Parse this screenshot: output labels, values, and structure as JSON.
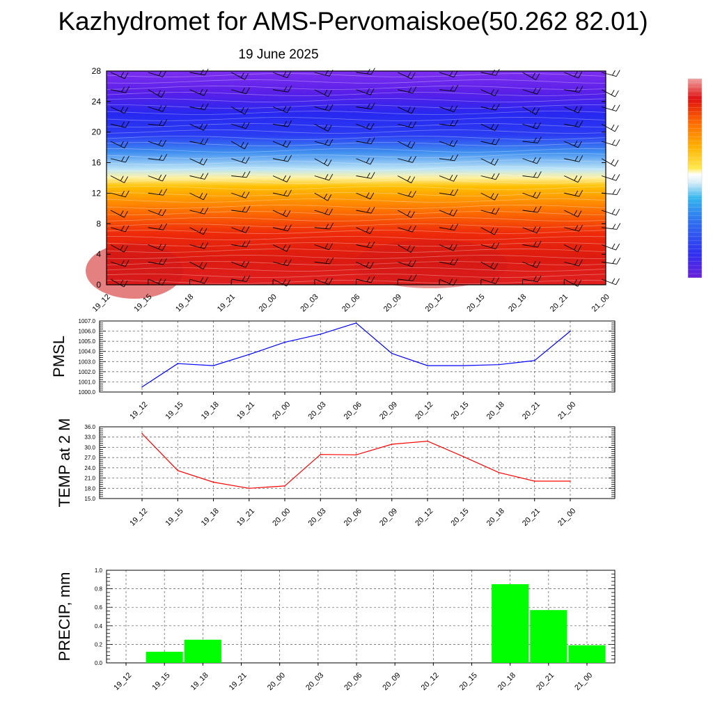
{
  "header": {
    "title": "Kazhydromet for AMS-Pervomaiskoe(50.262 82.01)",
    "subtitle": "19 June 2025"
  },
  "chart_data": [
    {
      "type": "heatmap",
      "title": "Kazhydromet for AMS-Pervomaiskoe(50.262 82.01)",
      "subtitle": "19 June 2025",
      "x": [
        "19_12",
        "19_15",
        "19_18",
        "19_21",
        "20_00",
        "20_03",
        "20_06",
        "20_09",
        "20_12",
        "20_15",
        "20_18",
        "20_21",
        "21_00"
      ],
      "y_ticks": [
        0,
        4,
        8,
        12,
        16,
        20,
        24,
        28
      ],
      "ylim": [
        0,
        28
      ],
      "colorbar_colors": [
        "#6a1fd8",
        "#3030f0",
        "#2f6ff0",
        "#35b5ee",
        "#ffffff",
        "#ffe84d",
        "#ffb000",
        "#ff6a00",
        "#e01010",
        "#c81d1d"
      ],
      "wind_barbs": true
    },
    {
      "type": "line",
      "ylabel": "PMSL",
      "categories": [
        "19_12",
        "19_15",
        "19_18",
        "19_21",
        "20_00",
        "20_03",
        "20_06",
        "20_09",
        "20_12",
        "20_15",
        "20_18",
        "20_21",
        "21_00"
      ],
      "values": [
        1000.5,
        1002.8,
        1002.6,
        1003.7,
        1004.9,
        1005.7,
        1006.8,
        1003.8,
        1002.6,
        1002.6,
        1002.7,
        1003.1,
        1006.0
      ],
      "ylim": [
        1000,
        1007
      ],
      "yticks": [
        "1000.0",
        "1001.0",
        "1002.0",
        "1003.0",
        "1004.0",
        "1005.0",
        "1006.0",
        "1007.0"
      ],
      "color": "#0000ff",
      "grid": true
    },
    {
      "type": "line",
      "ylabel": "TEMP at 2 M",
      "categories": [
        "19_12",
        "19_15",
        "19_18",
        "19_21",
        "20_00",
        "20_03",
        "20_06",
        "20_09",
        "20_12",
        "20_15",
        "20_18",
        "20_21",
        "21_00"
      ],
      "values": [
        34.0,
        23.2,
        19.8,
        18.0,
        18.7,
        27.9,
        27.8,
        30.9,
        31.8,
        27.3,
        22.6,
        20.1,
        20.1
      ],
      "ylim": [
        15,
        36
      ],
      "yticks": [
        "15.0",
        "18.0",
        "21.0",
        "24.0",
        "27.0",
        "30.0",
        "33.0",
        "36.0"
      ],
      "color": "#ff0000",
      "grid": true
    },
    {
      "type": "bar",
      "ylabel": "PRECIP, mm",
      "categories": [
        "19_12",
        "19_15",
        "19_18",
        "19_21",
        "20_00",
        "20_03",
        "20_06",
        "20_09",
        "20_12",
        "20_15",
        "20_18",
        "20_21",
        "21_00"
      ],
      "values": [
        0,
        0.12,
        0.25,
        0,
        0,
        0,
        0,
        0,
        0,
        0,
        0.85,
        0.57,
        0.19
      ],
      "ylim": [
        0,
        1.0
      ],
      "yticks": [
        "0.0",
        "0.2",
        "0.4",
        "0.6",
        "0.8",
        "1.0"
      ],
      "color": "#00ff00",
      "grid": true
    }
  ]
}
